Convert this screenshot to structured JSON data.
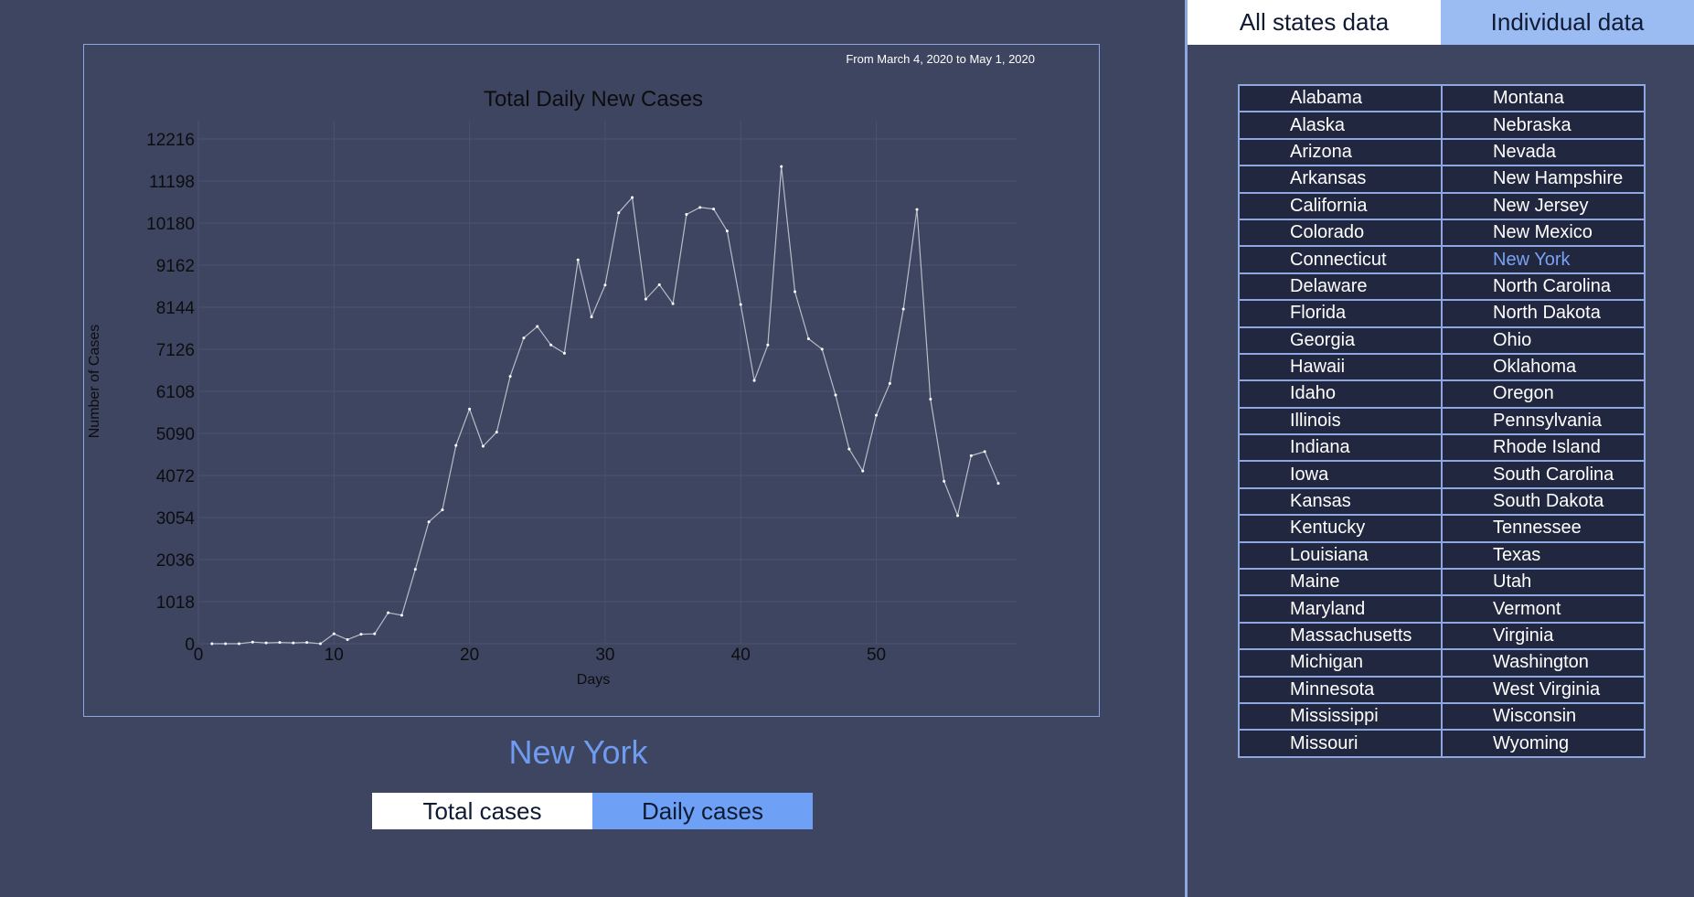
{
  "header": {
    "date_range": "From March 4, 2020 to May 1, 2020"
  },
  "selected_state": "New York",
  "toggle": {
    "total_label": "Total cases",
    "daily_label": "Daily cases"
  },
  "sidebar": {
    "tab_all": "All states data",
    "tab_individual": "Individual data",
    "states_left": [
      "Alabama",
      "Alaska",
      "Arizona",
      "Arkansas",
      "California",
      "Colorado",
      "Connecticut",
      "Delaware",
      "Florida",
      "Georgia",
      "Hawaii",
      "Idaho",
      "Illinois",
      "Indiana",
      "Iowa",
      "Kansas",
      "Kentucky",
      "Louisiana",
      "Maine",
      "Maryland",
      "Massachusetts",
      "Michigan",
      "Minnesota",
      "Mississippi",
      "Missouri"
    ],
    "states_right": [
      "Montana",
      "Nebraska",
      "Nevada",
      "New Hampshire",
      "New Jersey",
      "New Mexico",
      "New York",
      "North Carolina",
      "North Dakota",
      "Ohio",
      "Oklahoma",
      "Oregon",
      "Pennsylvania",
      "Rhode Island",
      "South Carolina",
      "South Dakota",
      "Tennessee",
      "Texas",
      "Utah",
      "Vermont",
      "Virginia",
      "Washington",
      "West Virginia",
      "Wisconsin",
      "Wyoming"
    ]
  },
  "colors": {
    "line": "#b8bcc8",
    "accent": "#6f9cf0",
    "grid": "#4a5270"
  },
  "chart_data": {
    "type": "line",
    "title": "Total Daily New Cases",
    "xlabel": "Days",
    "ylabel": "Number of Cases",
    "xlim": [
      0,
      59
    ],
    "ylim": [
      0,
      12216
    ],
    "x_ticks": [
      0,
      10,
      20,
      30,
      40,
      50
    ],
    "y_ticks": [
      0,
      1018,
      2036,
      3054,
      4072,
      5090,
      6108,
      7126,
      8144,
      9162,
      10180,
      11198,
      12216
    ],
    "grid": true,
    "series": [
      {
        "x": [
          1,
          2,
          3,
          4,
          5,
          6,
          7,
          8,
          9,
          10,
          11,
          12,
          13,
          14,
          15,
          16,
          17,
          18,
          19,
          20,
          21,
          22,
          23,
          24,
          25,
          26,
          27,
          28,
          29,
          30,
          31,
          32,
          33,
          34,
          35,
          36,
          37,
          38,
          39,
          40,
          41,
          42,
          43,
          44,
          45,
          46,
          47,
          48,
          49,
          50,
          51,
          52,
          53,
          54,
          55,
          56,
          57,
          58,
          59
        ],
        "values": [
          0,
          0,
          0,
          40,
          20,
          30,
          20,
          30,
          0,
          240,
          100,
          230,
          240,
          750,
          690,
          1800,
          2950,
          3240,
          4800,
          5680,
          4780,
          5120,
          6470,
          7400,
          7680,
          7230,
          7030,
          9290,
          7910,
          8680,
          10430,
          10800,
          8340,
          8690,
          8230,
          10390,
          10560,
          10520,
          9990,
          8210,
          6370,
          7230,
          11550,
          8520,
          7380,
          7130,
          6020,
          4710,
          4180,
          5530,
          6300,
          8100,
          10510,
          5920,
          3930,
          3100,
          4550,
          4650,
          3880
        ]
      }
    ]
  }
}
